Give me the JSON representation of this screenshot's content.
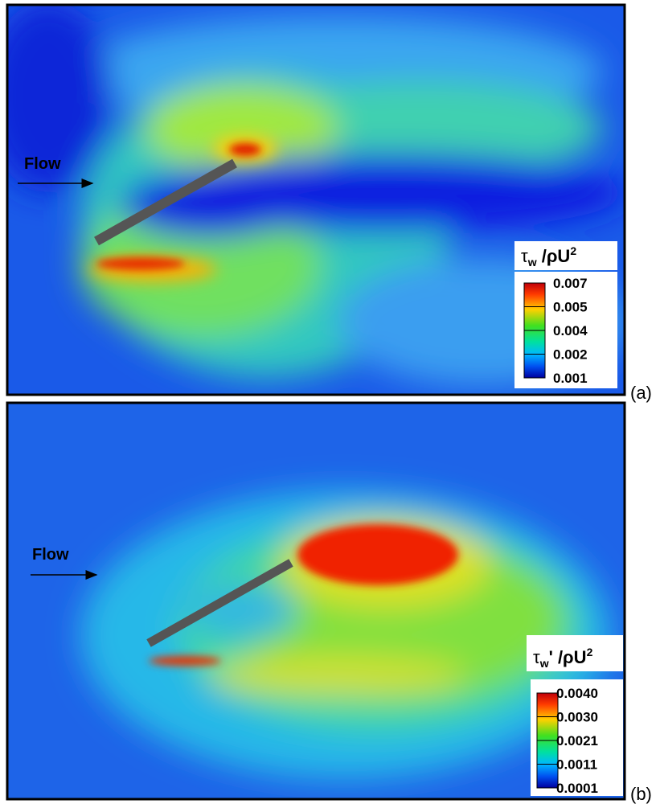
{
  "panels": [
    {
      "label": "(a)",
      "flow_label": "Flow",
      "colorbar": {
        "title": {
          "base": "τ",
          "sub": "w",
          "after": " /ρU",
          "sup": "2"
        },
        "ticks": [
          "0.007",
          "0.005",
          "0.004",
          "0.002",
          "0.001"
        ]
      }
    },
    {
      "label": "(b)",
      "flow_label": "Flow",
      "colorbar": {
        "title": {
          "base": "τ",
          "sub": "w",
          "after": "' /ρU",
          "sup": "2"
        },
        "ticks": [
          "0.0040",
          "0.0030",
          "0.0021",
          "0.0011",
          "0.0001"
        ]
      }
    }
  ]
}
